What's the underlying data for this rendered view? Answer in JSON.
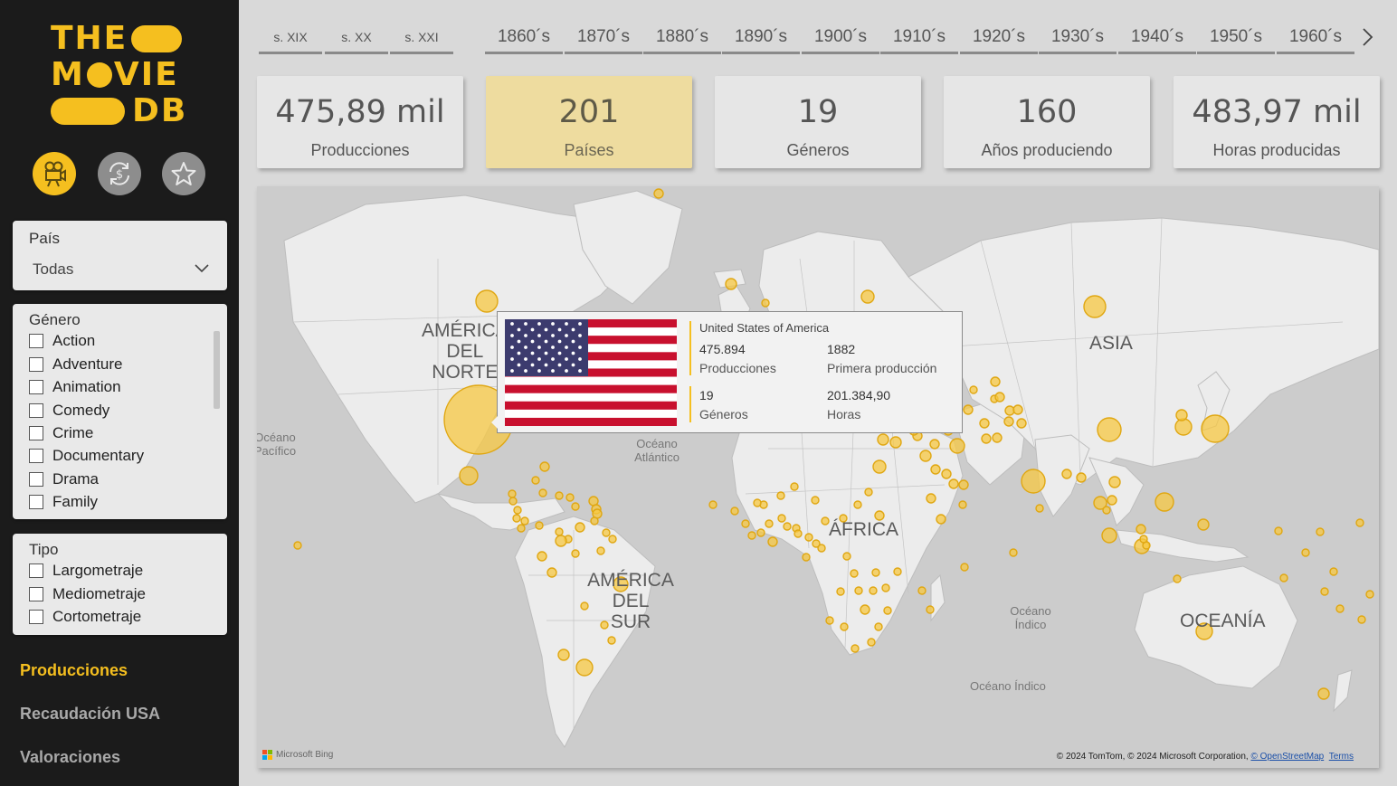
{
  "logo": {
    "line1": "THE",
    "line2a": "M",
    "line2b": "VIE",
    "line3": "DB"
  },
  "nav_icons": [
    "movie-camera-icon",
    "dollar-refresh-icon",
    "star-icon"
  ],
  "colors": {
    "accent": "#f5bf1f",
    "sidebar": "#1b1b1b",
    "kpi_active": "#eedc9f",
    "bubble": "#f7c843",
    "flag_red": "#c8102e",
    "flag_blue": "#3c3b6e"
  },
  "filters": {
    "country": {
      "title": "País",
      "value": "Todas"
    },
    "genre": {
      "title": "Género",
      "options": [
        "Action",
        "Adventure",
        "Animation",
        "Comedy",
        "Crime",
        "Documentary",
        "Drama",
        "Family"
      ]
    },
    "type": {
      "title": "Tipo",
      "options": [
        "Largometraje",
        "Mediometraje",
        "Cortometraje"
      ]
    }
  },
  "pages": [
    {
      "label": "Producciones",
      "active": true
    },
    {
      "label": "Recaudación USA",
      "active": false
    },
    {
      "label": "Valoraciones",
      "active": false
    }
  ],
  "timeline": {
    "centuries": [
      "s. XIX",
      "s. XX",
      "s. XXI"
    ],
    "decades": [
      "1860´s",
      "1870´s",
      "1880´s",
      "1890´s",
      "1900´s",
      "1910´s",
      "1920´s",
      "1930´s",
      "1940´s",
      "1950´s",
      "1960´s"
    ]
  },
  "kpis": [
    {
      "value": "475,89 mil",
      "label": "Producciones",
      "active": false
    },
    {
      "value": "201",
      "label": "Países",
      "active": true
    },
    {
      "value": "19",
      "label": "Géneros",
      "active": false
    },
    {
      "value": "160",
      "label": "Años produciendo",
      "active": false
    },
    {
      "value": "483,97 mil",
      "label": "Horas producidas",
      "active": false
    }
  ],
  "map": {
    "continents": {
      "north_america": "AMÉRICA DEL NORTE",
      "south_america": "AMÉRICA DEL SUR",
      "africa": "ÁFRICA",
      "asia": "ASIA",
      "oceania": "OCEANÍA"
    },
    "oceans": {
      "pacific": "Océano Pacífico",
      "atlantic": "Océano Atlántico",
      "indian": "Océano Índico",
      "indian2": "Océano Índico"
    },
    "bing": "Microsoft Bing",
    "attribution_text": "© 2024 TomTom, © 2024 Microsoft Corporation, ",
    "osm_link": "© OpenStreetMap",
    "terms_link": "Terms"
  },
  "tooltip": {
    "country": "United States of America",
    "productions_value": "475.894",
    "productions_label": "Producciones",
    "first_value": "1882",
    "first_label": "Primera producción",
    "genres_value": "19",
    "genres_label": "Géneros",
    "hours_value": "201.384,90",
    "hours_label": "Horas"
  }
}
